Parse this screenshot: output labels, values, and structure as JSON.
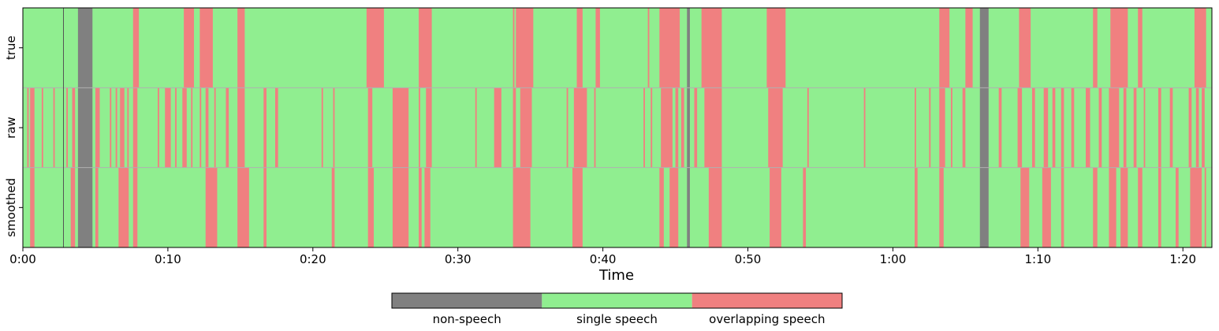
{
  "chart_data": {
    "type": "heatmap",
    "xlabel": "Time",
    "x_unit": "seconds",
    "xlim": [
      0,
      82
    ],
    "x_ticks": [
      {
        "value": 0,
        "label": "0:00"
      },
      {
        "value": 10,
        "label": "0:10"
      },
      {
        "value": 20,
        "label": "0:20"
      },
      {
        "value": 30,
        "label": "0:30"
      },
      {
        "value": 40,
        "label": "0:40"
      },
      {
        "value": 50,
        "label": "0:50"
      },
      {
        "value": 60,
        "label": "1:00"
      },
      {
        "value": 70,
        "label": "1:10"
      },
      {
        "value": 80,
        "label": "1:20"
      }
    ],
    "default_class": "single speech",
    "classes": [
      {
        "name": "non-speech",
        "color": "#808080"
      },
      {
        "name": "single speech",
        "color": "#90ee90"
      },
      {
        "name": "overlapping speech",
        "color": "#f08080"
      }
    ],
    "rows": [
      {
        "label": "true",
        "segments": [
          {
            "start": 3.8,
            "end": 4.8,
            "class": "non-speech"
          },
          {
            "start": 7.6,
            "end": 8.0,
            "class": "overlapping speech"
          },
          {
            "start": 11.1,
            "end": 11.8,
            "class": "overlapping speech"
          },
          {
            "start": 12.2,
            "end": 13.1,
            "class": "overlapping speech"
          },
          {
            "start": 14.8,
            "end": 15.3,
            "class": "overlapping speech"
          },
          {
            "start": 23.7,
            "end": 24.9,
            "class": "overlapping speech"
          },
          {
            "start": 27.3,
            "end": 28.2,
            "class": "overlapping speech"
          },
          {
            "start": 33.8,
            "end": 33.9,
            "class": "overlapping speech"
          },
          {
            "start": 34.0,
            "end": 35.2,
            "class": "overlapping speech"
          },
          {
            "start": 38.2,
            "end": 38.6,
            "class": "overlapping speech"
          },
          {
            "start": 39.5,
            "end": 39.8,
            "class": "overlapping speech"
          },
          {
            "start": 43.1,
            "end": 43.2,
            "class": "overlapping speech"
          },
          {
            "start": 43.9,
            "end": 45.3,
            "class": "overlapping speech"
          },
          {
            "start": 45.8,
            "end": 46.0,
            "class": "non-speech"
          },
          {
            "start": 46.8,
            "end": 48.2,
            "class": "overlapping speech"
          },
          {
            "start": 51.3,
            "end": 52.6,
            "class": "overlapping speech"
          },
          {
            "start": 63.2,
            "end": 63.9,
            "class": "overlapping speech"
          },
          {
            "start": 65.0,
            "end": 65.5,
            "class": "overlapping speech"
          },
          {
            "start": 66.0,
            "end": 66.6,
            "class": "non-speech"
          },
          {
            "start": 68.7,
            "end": 69.5,
            "class": "overlapping speech"
          },
          {
            "start": 73.8,
            "end": 74.1,
            "class": "overlapping speech"
          },
          {
            "start": 75.0,
            "end": 76.2,
            "class": "overlapping speech"
          },
          {
            "start": 76.9,
            "end": 77.2,
            "class": "overlapping speech"
          },
          {
            "start": 80.8,
            "end": 81.6,
            "class": "overlapping speech"
          }
        ]
      },
      {
        "label": "raw",
        "segments": [
          {
            "start": 0.3,
            "end": 0.4,
            "class": "overlapping speech"
          },
          {
            "start": 0.5,
            "end": 0.8,
            "class": "overlapping speech"
          },
          {
            "start": 1.3,
            "end": 1.4,
            "class": "overlapping speech"
          },
          {
            "start": 2.1,
            "end": 2.2,
            "class": "overlapping speech"
          },
          {
            "start": 3.0,
            "end": 3.1,
            "class": "overlapping speech"
          },
          {
            "start": 3.4,
            "end": 3.6,
            "class": "overlapping speech"
          },
          {
            "start": 3.8,
            "end": 4.8,
            "class": "non-speech"
          },
          {
            "start": 5.0,
            "end": 5.3,
            "class": "overlapping speech"
          },
          {
            "start": 6.0,
            "end": 6.1,
            "class": "overlapping speech"
          },
          {
            "start": 6.4,
            "end": 6.5,
            "class": "overlapping speech"
          },
          {
            "start": 6.7,
            "end": 7.0,
            "class": "overlapping speech"
          },
          {
            "start": 7.2,
            "end": 7.3,
            "class": "overlapping speech"
          },
          {
            "start": 7.6,
            "end": 7.9,
            "class": "overlapping speech"
          },
          {
            "start": 9.3,
            "end": 9.4,
            "class": "overlapping speech"
          },
          {
            "start": 9.8,
            "end": 10.2,
            "class": "overlapping speech"
          },
          {
            "start": 10.5,
            "end": 10.6,
            "class": "overlapping speech"
          },
          {
            "start": 11.0,
            "end": 11.3,
            "class": "overlapping speech"
          },
          {
            "start": 11.6,
            "end": 11.7,
            "class": "overlapping speech"
          },
          {
            "start": 12.2,
            "end": 12.3,
            "class": "overlapping speech"
          },
          {
            "start": 12.6,
            "end": 12.8,
            "class": "overlapping speech"
          },
          {
            "start": 13.2,
            "end": 13.3,
            "class": "overlapping speech"
          },
          {
            "start": 14.0,
            "end": 14.2,
            "class": "overlapping speech"
          },
          {
            "start": 14.8,
            "end": 15.3,
            "class": "overlapping speech"
          },
          {
            "start": 16.6,
            "end": 16.8,
            "class": "overlapping speech"
          },
          {
            "start": 17.4,
            "end": 17.6,
            "class": "overlapping speech"
          },
          {
            "start": 20.6,
            "end": 20.7,
            "class": "overlapping speech"
          },
          {
            "start": 21.4,
            "end": 21.5,
            "class": "overlapping speech"
          },
          {
            "start": 23.8,
            "end": 24.1,
            "class": "overlapping speech"
          },
          {
            "start": 25.5,
            "end": 26.6,
            "class": "overlapping speech"
          },
          {
            "start": 27.3,
            "end": 27.4,
            "class": "overlapping speech"
          },
          {
            "start": 27.8,
            "end": 28.2,
            "class": "overlapping speech"
          },
          {
            "start": 31.2,
            "end": 31.3,
            "class": "overlapping speech"
          },
          {
            "start": 32.5,
            "end": 33.0,
            "class": "overlapping speech"
          },
          {
            "start": 33.8,
            "end": 34.0,
            "class": "overlapping speech"
          },
          {
            "start": 34.3,
            "end": 35.1,
            "class": "overlapping speech"
          },
          {
            "start": 37.5,
            "end": 37.6,
            "class": "overlapping speech"
          },
          {
            "start": 38.0,
            "end": 38.9,
            "class": "overlapping speech"
          },
          {
            "start": 39.4,
            "end": 39.5,
            "class": "overlapping speech"
          },
          {
            "start": 42.8,
            "end": 42.9,
            "class": "overlapping speech"
          },
          {
            "start": 43.3,
            "end": 43.4,
            "class": "overlapping speech"
          },
          {
            "start": 44.0,
            "end": 44.8,
            "class": "overlapping speech"
          },
          {
            "start": 45.0,
            "end": 45.2,
            "class": "overlapping speech"
          },
          {
            "start": 45.4,
            "end": 45.6,
            "class": "overlapping speech"
          },
          {
            "start": 45.8,
            "end": 46.0,
            "class": "non-speech"
          },
          {
            "start": 46.3,
            "end": 46.5,
            "class": "overlapping speech"
          },
          {
            "start": 47.0,
            "end": 48.2,
            "class": "overlapping speech"
          },
          {
            "start": 51.4,
            "end": 52.4,
            "class": "overlapping speech"
          },
          {
            "start": 54.1,
            "end": 54.2,
            "class": "overlapping speech"
          },
          {
            "start": 58.0,
            "end": 58.1,
            "class": "overlapping speech"
          },
          {
            "start": 61.5,
            "end": 61.6,
            "class": "overlapping speech"
          },
          {
            "start": 62.5,
            "end": 62.6,
            "class": "overlapping speech"
          },
          {
            "start": 63.2,
            "end": 63.6,
            "class": "overlapping speech"
          },
          {
            "start": 64.0,
            "end": 64.1,
            "class": "overlapping speech"
          },
          {
            "start": 64.8,
            "end": 65.0,
            "class": "overlapping speech"
          },
          {
            "start": 66.0,
            "end": 66.6,
            "class": "non-speech"
          },
          {
            "start": 67.3,
            "end": 67.5,
            "class": "overlapping speech"
          },
          {
            "start": 68.6,
            "end": 68.9,
            "class": "overlapping speech"
          },
          {
            "start": 69.6,
            "end": 69.8,
            "class": "overlapping speech"
          },
          {
            "start": 70.4,
            "end": 70.7,
            "class": "overlapping speech"
          },
          {
            "start": 71.0,
            "end": 71.2,
            "class": "overlapping speech"
          },
          {
            "start": 71.6,
            "end": 71.8,
            "class": "overlapping speech"
          },
          {
            "start": 72.3,
            "end": 72.5,
            "class": "overlapping speech"
          },
          {
            "start": 73.3,
            "end": 73.6,
            "class": "overlapping speech"
          },
          {
            "start": 74.2,
            "end": 74.4,
            "class": "overlapping speech"
          },
          {
            "start": 74.9,
            "end": 75.6,
            "class": "overlapping speech"
          },
          {
            "start": 75.9,
            "end": 76.1,
            "class": "overlapping speech"
          },
          {
            "start": 76.6,
            "end": 76.8,
            "class": "overlapping speech"
          },
          {
            "start": 77.3,
            "end": 77.4,
            "class": "overlapping speech"
          },
          {
            "start": 78.3,
            "end": 78.5,
            "class": "overlapping speech"
          },
          {
            "start": 79.1,
            "end": 79.3,
            "class": "overlapping speech"
          },
          {
            "start": 80.4,
            "end": 80.6,
            "class": "overlapping speech"
          },
          {
            "start": 80.9,
            "end": 81.1,
            "class": "overlapping speech"
          },
          {
            "start": 81.3,
            "end": 81.5,
            "class": "overlapping speech"
          }
        ]
      },
      {
        "label": "smoothed",
        "segments": [
          {
            "start": 0.5,
            "end": 0.8,
            "class": "overlapping speech"
          },
          {
            "start": 3.3,
            "end": 3.6,
            "class": "overlapping speech"
          },
          {
            "start": 3.8,
            "end": 4.8,
            "class": "non-speech"
          },
          {
            "start": 5.0,
            "end": 5.2,
            "class": "overlapping speech"
          },
          {
            "start": 6.6,
            "end": 7.3,
            "class": "overlapping speech"
          },
          {
            "start": 7.6,
            "end": 7.9,
            "class": "overlapping speech"
          },
          {
            "start": 12.6,
            "end": 13.4,
            "class": "overlapping speech"
          },
          {
            "start": 14.8,
            "end": 15.6,
            "class": "overlapping speech"
          },
          {
            "start": 16.6,
            "end": 16.8,
            "class": "overlapping speech"
          },
          {
            "start": 21.3,
            "end": 21.5,
            "class": "overlapping speech"
          },
          {
            "start": 23.8,
            "end": 24.2,
            "class": "overlapping speech"
          },
          {
            "start": 25.5,
            "end": 26.6,
            "class": "overlapping speech"
          },
          {
            "start": 27.3,
            "end": 27.5,
            "class": "overlapping speech"
          },
          {
            "start": 27.7,
            "end": 28.1,
            "class": "overlapping speech"
          },
          {
            "start": 33.8,
            "end": 35.0,
            "class": "overlapping speech"
          },
          {
            "start": 37.9,
            "end": 38.6,
            "class": "overlapping speech"
          },
          {
            "start": 43.9,
            "end": 44.2,
            "class": "overlapping speech"
          },
          {
            "start": 44.6,
            "end": 45.2,
            "class": "overlapping speech"
          },
          {
            "start": 45.8,
            "end": 46.0,
            "class": "non-speech"
          },
          {
            "start": 47.3,
            "end": 48.2,
            "class": "overlapping speech"
          },
          {
            "start": 51.5,
            "end": 52.3,
            "class": "overlapping speech"
          },
          {
            "start": 53.8,
            "end": 54.0,
            "class": "overlapping speech"
          },
          {
            "start": 61.5,
            "end": 61.7,
            "class": "overlapping speech"
          },
          {
            "start": 63.2,
            "end": 63.5,
            "class": "overlapping speech"
          },
          {
            "start": 66.0,
            "end": 66.6,
            "class": "non-speech"
          },
          {
            "start": 68.8,
            "end": 69.4,
            "class": "overlapping speech"
          },
          {
            "start": 70.3,
            "end": 70.9,
            "class": "overlapping speech"
          },
          {
            "start": 71.6,
            "end": 71.8,
            "class": "overlapping speech"
          },
          {
            "start": 73.8,
            "end": 74.1,
            "class": "overlapping speech"
          },
          {
            "start": 74.9,
            "end": 75.4,
            "class": "overlapping speech"
          },
          {
            "start": 75.7,
            "end": 76.2,
            "class": "overlapping speech"
          },
          {
            "start": 76.9,
            "end": 77.2,
            "class": "overlapping speech"
          },
          {
            "start": 78.3,
            "end": 78.5,
            "class": "overlapping speech"
          },
          {
            "start": 79.5,
            "end": 79.7,
            "class": "overlapping speech"
          },
          {
            "start": 80.5,
            "end": 81.3,
            "class": "overlapping speech"
          },
          {
            "start": 81.5,
            "end": 81.6,
            "class": "overlapping speech"
          }
        ]
      }
    ],
    "vertical_markers": [
      2.8
    ],
    "legend": {
      "placement": "bottom-center",
      "entries": [
        {
          "label": "non-speech",
          "color": "#808080"
        },
        {
          "label": "single speech",
          "color": "#90ee90"
        },
        {
          "label": "overlapping speech",
          "color": "#f08080"
        }
      ]
    }
  }
}
